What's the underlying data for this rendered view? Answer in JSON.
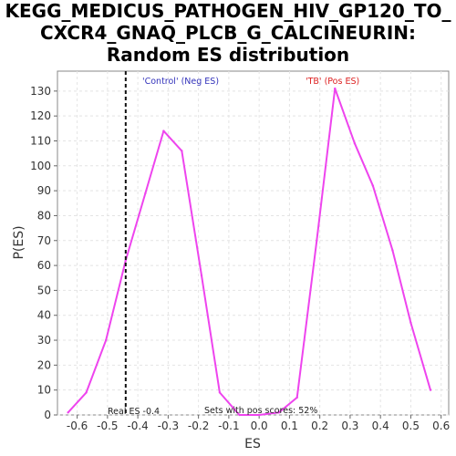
{
  "chart_data": {
    "type": "line",
    "title_lines": [
      "KEGG_MEDICUS_PATHOGEN_HIV_GP120_TO_",
      "CXCR4_GNAQ_PLCB_G_CALCINEURIN:",
      "Random ES distribution"
    ],
    "xlabel": "ES",
    "ylabel": "P(ES)",
    "xlim": [
      -0.665,
      0.625
    ],
    "ylim": [
      0,
      138
    ],
    "x_ticks": [
      -0.6,
      -0.5,
      -0.4,
      -0.3,
      -0.2,
      -0.1,
      0.0,
      0.1,
      0.2,
      0.3,
      0.4,
      0.5,
      0.6
    ],
    "x_tick_labels": [
      "-0.6",
      "-0.5",
      "-0.4",
      "-0.3",
      "-0.2",
      "-0.1",
      "0.0",
      "0.1",
      "0.2",
      "0.3",
      "0.4",
      "0.5",
      "0.6"
    ],
    "y_ticks": [
      0,
      10,
      20,
      30,
      40,
      50,
      60,
      70,
      80,
      90,
      100,
      110,
      120,
      130
    ],
    "grid": true,
    "series": [
      {
        "color": "#ee44ee",
        "x": [
          -0.63,
          -0.57,
          -0.505,
          -0.44,
          -0.375,
          -0.315,
          -0.255,
          -0.19,
          -0.13,
          -0.065,
          0.0,
          0.065,
          0.125,
          0.19,
          0.25,
          0.315,
          0.375,
          0.44,
          0.5,
          0.565
        ],
        "y": [
          1,
          9,
          30,
          62,
          89,
          114,
          106,
          56,
          9,
          0,
          0,
          1,
          7,
          70,
          131,
          109,
          92,
          66,
          37,
          10
        ]
      }
    ],
    "annotations": {
      "neg_label": "'Control' (Neg ES)",
      "neg_color": "#3333bb",
      "pos_label": "'TB' (Pos ES)",
      "pos_color": "#dd2222",
      "real_es_label": "Real ES -0.4",
      "real_es_x": -0.44,
      "pos_scores_label": "Sets with pos scores: 52%"
    }
  }
}
